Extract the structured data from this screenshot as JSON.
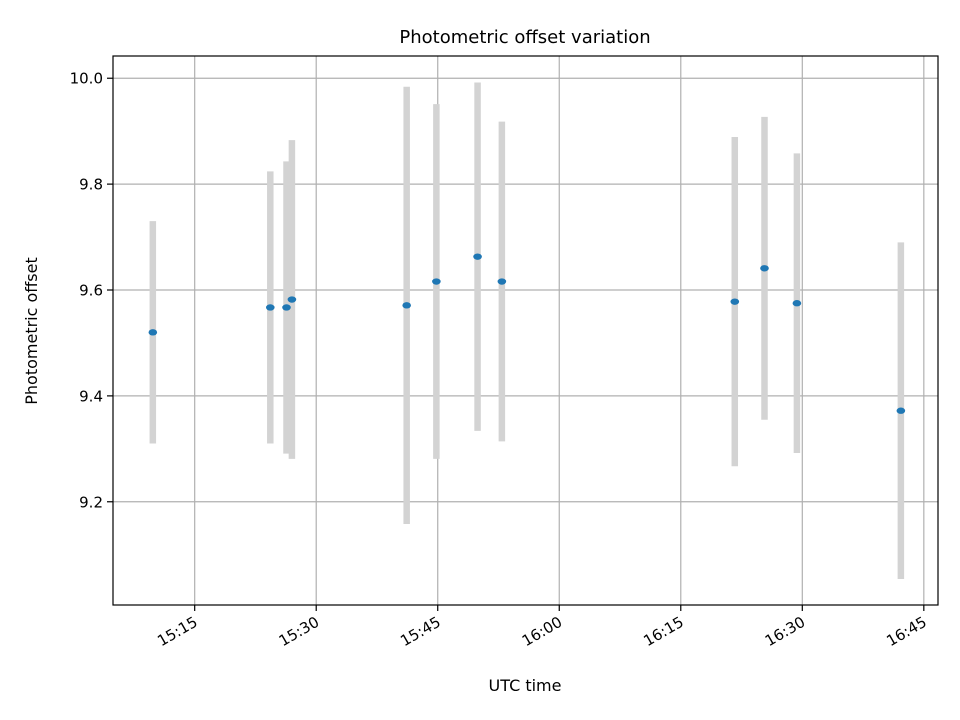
{
  "chart_data": {
    "type": "scatter",
    "title": "Photometric offset variation",
    "xlabel": "UTC time",
    "ylabel": "Photometric offset",
    "x_ticks": [
      "15:15",
      "15:30",
      "15:45",
      "16:00",
      "16:15",
      "16:30",
      "16:45"
    ],
    "y_ticks": [
      "9.2",
      "9.4",
      "9.6",
      "9.8",
      "10.0"
    ],
    "xlim": [
      "15:04:55",
      "16:46:45"
    ],
    "ylim": [
      9.005,
      10.042
    ],
    "grid": true,
    "series": [
      {
        "x": [
          "15:09:50",
          "15:24:20",
          "15:26:20",
          "15:27:00",
          "15:41:10",
          "15:44:50",
          "15:49:55",
          "15:52:55",
          "16:21:40",
          "16:25:20",
          "16:29:20",
          "16:42:10"
        ],
        "y": [
          9.52,
          9.567,
          9.567,
          9.582,
          9.571,
          9.616,
          9.663,
          9.616,
          9.578,
          9.641,
          9.575,
          9.372
        ],
        "error": [
          0.21,
          0.257,
          0.276,
          0.301,
          0.413,
          0.335,
          0.329,
          0.302,
          0.311,
          0.286,
          0.283,
          0.318
        ]
      }
    ],
    "colors": {
      "marker": "#1f77b4",
      "errorbar": "#d3d3d3",
      "grid": "#b0b0b0",
      "axes": "#000000"
    }
  }
}
